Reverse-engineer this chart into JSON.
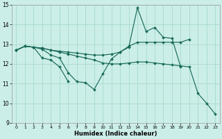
{
  "xlabel": "Humidex (Indice chaleur)",
  "bg_color": "#cceee8",
  "grid_color": "#aaddcc",
  "line_color": "#1a6b5a",
  "xlim": [
    -0.5,
    23.5
  ],
  "ylim": [
    9,
    15
  ],
  "yticks": [
    9,
    10,
    11,
    12,
    13,
    14,
    15
  ],
  "xticks": [
    0,
    1,
    2,
    3,
    4,
    5,
    6,
    7,
    8,
    9,
    10,
    11,
    12,
    13,
    14,
    15,
    16,
    17,
    18,
    19,
    20,
    21,
    22,
    23
  ],
  "series": [
    {
      "x": [
        0,
        1,
        2,
        3,
        4,
        5,
        6,
        7,
        8,
        9,
        10,
        11,
        12,
        13,
        14,
        15,
        16,
        17,
        18,
        19,
        20,
        21,
        22,
        23
      ],
      "y": [
        12.7,
        12.9,
        12.85,
        12.8,
        12.7,
        12.6,
        12.5,
        12.4,
        12.3,
        12.2,
        12.05,
        12.0,
        12.0,
        12.05,
        12.1,
        12.1,
        12.05,
        12.0,
        11.95,
        11.9,
        11.85,
        10.5,
        10.0,
        9.45
      ]
    },
    {
      "x": [
        0,
        1,
        2,
        3,
        4,
        5,
        6,
        7,
        8,
        9,
        10,
        11,
        12,
        13,
        14,
        15,
        16,
        17,
        18,
        19,
        20
      ],
      "y": [
        12.7,
        12.9,
        12.85,
        12.8,
        12.7,
        12.65,
        12.6,
        12.55,
        12.5,
        12.45,
        12.45,
        12.5,
        12.6,
        12.9,
        13.1,
        13.1,
        13.1,
        13.1,
        13.1,
        13.1,
        13.25
      ]
    },
    {
      "x": [
        0,
        1,
        2,
        3,
        4,
        5,
        6,
        7,
        8,
        9,
        10,
        11,
        12,
        13,
        14,
        15,
        16,
        17,
        18,
        19
      ],
      "y": [
        12.7,
        12.9,
        12.85,
        12.75,
        12.45,
        12.3,
        11.55,
        11.1,
        11.05,
        10.7,
        11.5,
        12.25,
        12.6,
        12.85,
        14.85,
        13.65,
        13.85,
        13.35,
        13.3,
        11.85
      ]
    },
    {
      "x": [
        0,
        1,
        2,
        3,
        4,
        5,
        6
      ],
      "y": [
        12.7,
        12.9,
        12.85,
        12.3,
        12.2,
        11.85,
        11.1
      ]
    }
  ]
}
